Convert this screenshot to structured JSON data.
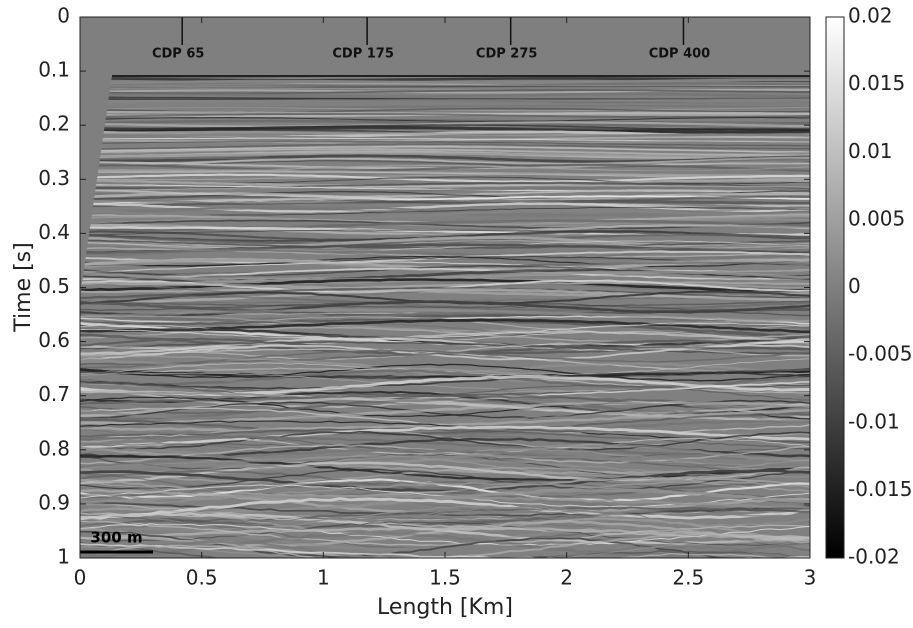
{
  "chart_data": {
    "type": "heatmap",
    "xlabel": "Length [Km]",
    "ylabel": "Time [s]",
    "xlim": [
      0,
      3
    ],
    "xticks": [
      0,
      0.5,
      1,
      1.5,
      2,
      2.5,
      3
    ],
    "ylim": [
      0,
      1
    ],
    "yticks": [
      0,
      0.1,
      0.2,
      0.3,
      0.4,
      0.5,
      0.6,
      0.7,
      0.8,
      0.9,
      1
    ],
    "y_reversed": true,
    "colormap": "gray",
    "clim": [
      -0.02,
      0.02
    ],
    "colorbar_ticks": [
      0.02,
      0.015,
      0.01,
      0.005,
      0,
      -0.005,
      -0.01,
      -0.015,
      -0.02
    ],
    "cdp_markers": [
      {
        "label": "CDP 65",
        "x": 0.42
      },
      {
        "label": "CDP 175",
        "x": 1.18
      },
      {
        "label": "CDP 275",
        "x": 1.77
      },
      {
        "label": "CDP 400",
        "x": 2.48
      }
    ],
    "scale_bar": {
      "label": "300 m",
      "length": 0.3
    }
  }
}
